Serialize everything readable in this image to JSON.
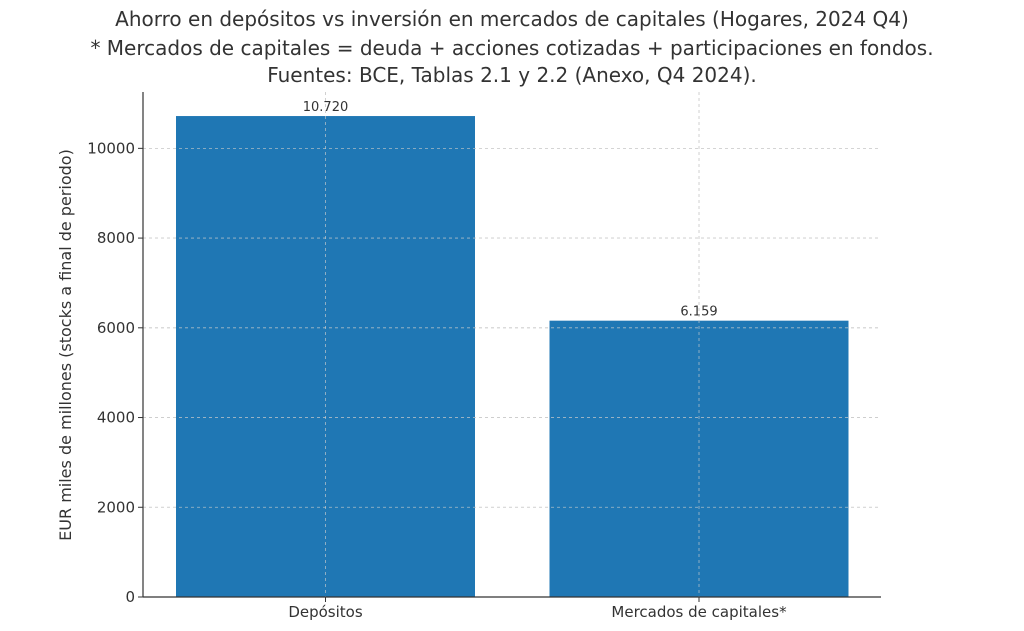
{
  "chart_data": {
    "type": "bar",
    "title_lines": [
      "Ahorro en depósitos vs inversión en mercados de capitales (Hogares, 2024 Q4)",
      "* Mercados de capitales = deuda + acciones cotizadas + participaciones en fondos.",
      "Fuentes: BCE, Tablas 2.1 y 2.2 (Anexo, Q4 2024)."
    ],
    "categories": [
      "Depósitos",
      "Mercados de capitales*"
    ],
    "values": [
      10720,
      6159
    ],
    "data_labels": [
      "10.720",
      "6.159"
    ],
    "xlabel": "",
    "ylabel": "EUR miles de millones (stocks a final de periodo)",
    "ylim": [
      0,
      11256
    ],
    "yticks": [
      0,
      2000,
      4000,
      6000,
      8000,
      10000
    ],
    "ytick_labels": [
      "0",
      "2000",
      "4000",
      "6000",
      "8000",
      "10000"
    ],
    "grid": true,
    "bar_color": "#1f77b4",
    "grid_color": "#cccccc"
  }
}
